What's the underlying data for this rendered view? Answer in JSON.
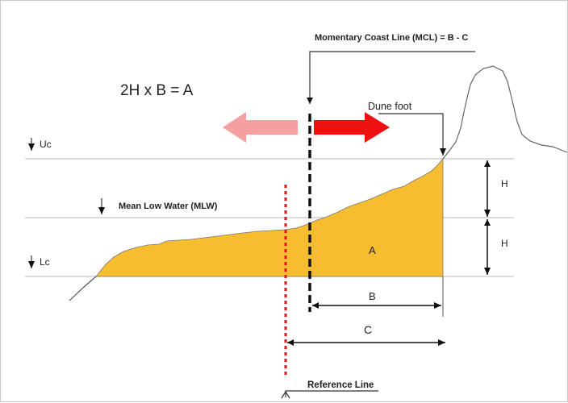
{
  "formula": "2H x B = A",
  "mcl_label": "Momentary Coast Line (MCL) = B - C",
  "dune_foot_label": "Dune foot",
  "uc_label": "Uc",
  "mlw_label": "Mean Low Water (MLW)",
  "lc_label": "Lc",
  "area_label": "A",
  "h_upper_label": "H",
  "h_lower_label": "H",
  "b_label": "B",
  "c_label": "C",
  "reference_label": "Reference Line",
  "colors": {
    "area_fill": "#f7bd30",
    "arrow_right": "#ee1111",
    "arrow_left": "#f4a0a0",
    "reference_line": "#ee1111",
    "level_lines": "#c8c8c8",
    "dimension_lines": "#111111"
  }
}
